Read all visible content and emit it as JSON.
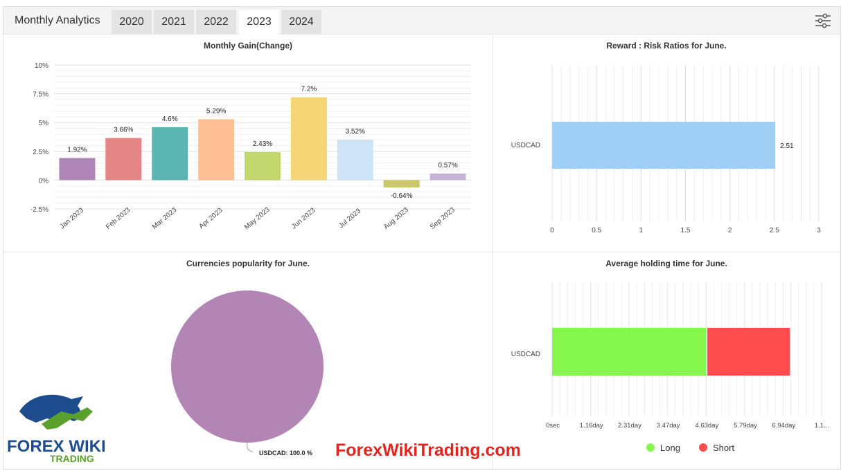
{
  "header": {
    "title": "Monthly Analytics",
    "tabs": [
      {
        "label": "2020",
        "active": false
      },
      {
        "label": "2021",
        "active": false
      },
      {
        "label": "2022",
        "active": false
      },
      {
        "label": "2023",
        "active": true
      },
      {
        "label": "2024",
        "active": false
      }
    ],
    "settings_icon": "sliders-icon"
  },
  "panels": {
    "monthly_gain": {
      "title": "Monthly Gain(Change)"
    },
    "reward_risk": {
      "title": "Reward : Risk Ratios for June."
    },
    "popularity": {
      "title": "Currencies popularity for June."
    },
    "holding": {
      "title": "Average holding time for June."
    }
  },
  "chart_data": [
    {
      "type": "bar",
      "title": "Monthly Gain(Change)",
      "categories": [
        "Jan 2023",
        "Feb 2023",
        "Mar 2023",
        "Apr 2023",
        "May 2023",
        "Jun 2023",
        "Jul 2023",
        "Aug 2023",
        "Sep 2023"
      ],
      "values": [
        1.92,
        3.66,
        4.6,
        5.29,
        2.43,
        7.2,
        3.52,
        -0.64,
        0.57
      ],
      "data_labels": [
        "1.92%",
        "3.66%",
        "4.6%",
        "5.29%",
        "2.43%",
        "7.2%",
        "3.52%",
        "-0.64%",
        "0.57%"
      ],
      "colors": [
        "#b085b8",
        "#e38585",
        "#5ab5b3",
        "#fdbf93",
        "#c2d86f",
        "#f5d677",
        "#cfe4f7",
        "#c9c76a",
        "#c6b3d6"
      ],
      "yticks": [
        "10%",
        "7.5%",
        "5%",
        "2.5%",
        "0%",
        "-2.5%"
      ],
      "ytick_values": [
        10,
        7.5,
        5,
        2.5,
        0,
        -2.5
      ],
      "ylim": [
        -2.5,
        10
      ]
    },
    {
      "type": "bar",
      "orientation": "horizontal",
      "title": "Reward : Risk Ratios for June.",
      "categories": [
        "USDCAD"
      ],
      "values": [
        2.51
      ],
      "data_labels": [
        "2.51"
      ],
      "color": "#a0cff5",
      "xticks": [
        "0",
        "0.5",
        "1",
        "1.5",
        "2",
        "2.5",
        "3"
      ],
      "xtick_values": [
        0,
        0.5,
        1,
        1.5,
        2,
        2.5,
        3
      ],
      "xlim": [
        0,
        3
      ]
    },
    {
      "type": "pie",
      "title": "Currencies popularity for June.",
      "labels": [
        "USDCAD"
      ],
      "values": [
        100.0
      ],
      "data_labels": [
        "USDCAD: 100.0 %"
      ],
      "colors": [
        "#b385b5"
      ]
    },
    {
      "type": "bar",
      "orientation": "horizontal",
      "stacked": true,
      "title": "Average holding time for June.",
      "categories": [
        "USDCAD"
      ],
      "series": [
        {
          "name": "Long",
          "values": [
            4.65
          ],
          "color": "#84f64c"
        },
        {
          "name": "Short",
          "values": [
            2.5
          ],
          "color": "#ff4c4c"
        }
      ],
      "xticks": [
        "0sec",
        "1.16day",
        "2.31day",
        "3.47day",
        "4.63day",
        "5.79day",
        "6.94day",
        "1.1…"
      ],
      "xtick_values": [
        0,
        1.16,
        2.31,
        3.47,
        4.63,
        5.79,
        6.94,
        8.1
      ],
      "xlim": [
        0,
        8.1
      ],
      "legend": "bottom"
    }
  ],
  "watermark": {
    "site": "ForexWikiTrading.com",
    "logo_text_top": "FOREX WIKI",
    "logo_text_bottom": "TRADING"
  }
}
